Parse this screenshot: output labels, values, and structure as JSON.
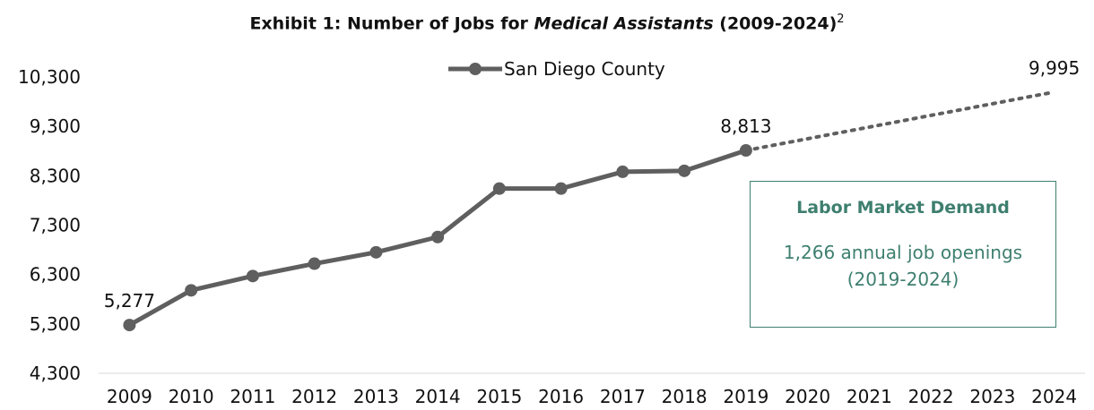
{
  "chart_data": {
    "type": "line",
    "title_prefix": "Exhibit 1: Number of Jobs for ",
    "title_italic": "Medical Assistants",
    "title_suffix": " (2009-2024)",
    "title_footnote": "2",
    "categories": [
      "2009",
      "2010",
      "2011",
      "2012",
      "2013",
      "2014",
      "2015",
      "2016",
      "2017",
      "2018",
      "2019",
      "2020",
      "2021",
      "2022",
      "2023",
      "2024"
    ],
    "series": [
      {
        "name": "San Diego County",
        "color": "#5f5f5f",
        "x": [
          "2009",
          "2010",
          "2011",
          "2012",
          "2013",
          "2014",
          "2015",
          "2016",
          "2017",
          "2018",
          "2019"
        ],
        "values": [
          5277,
          5980,
          6270,
          6520,
          6750,
          7060,
          8040,
          8040,
          8380,
          8400,
          8813
        ]
      },
      {
        "name": "",
        "style": "dotted",
        "color": "#5f5f5f",
        "x": [
          "2019",
          "2024"
        ],
        "values": [
          8813,
          9995
        ]
      }
    ],
    "y_ticks": [
      "4,300",
      "5,300",
      "6,300",
      "7,300",
      "8,300",
      "9,300",
      "10,300"
    ],
    "ylim": [
      4300,
      10300
    ],
    "data_labels": [
      {
        "x": "2009",
        "value": 5277,
        "text": "5,277"
      },
      {
        "x": "2019",
        "value": 8813,
        "text": "8,813"
      },
      {
        "x": "2024",
        "value": 9995,
        "text": "9,995"
      }
    ],
    "legend_position": "top-center",
    "grid": false
  },
  "callout": {
    "title": "Labor Market Demand",
    "line1": "1,266 annual job openings",
    "line2": "(2019-2024)",
    "color": "#3e7f6f"
  }
}
